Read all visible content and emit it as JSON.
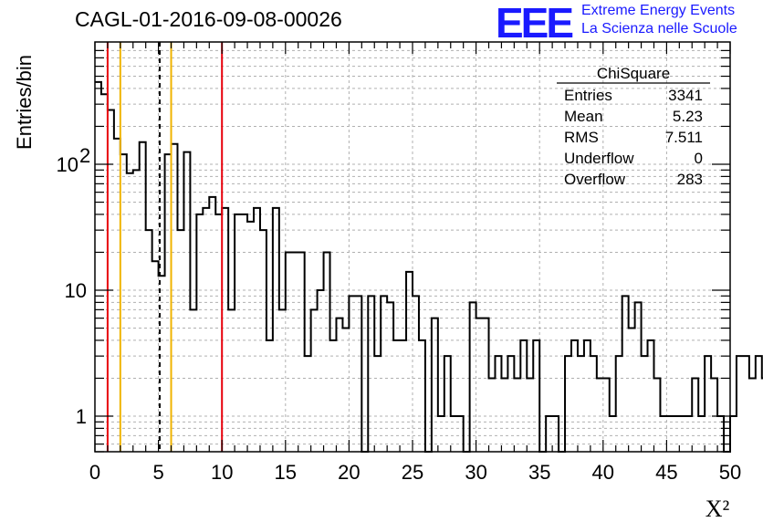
{
  "header": {
    "title": "CAGL-01-2016-09-08-00026",
    "logo_text": "EEE",
    "logo_line1": "Extreme Energy Events",
    "logo_line2": "La Scienza nelle Scuole"
  },
  "stats": {
    "title": "ChiSquare",
    "rows": [
      {
        "label": "Entries",
        "value": "3341"
      },
      {
        "label": "Mean",
        "value": "5.23"
      },
      {
        "label": "RMS",
        "value": "7.511"
      },
      {
        "label": "Underflow",
        "value": "0"
      },
      {
        "label": "Overflow",
        "value": "283"
      }
    ]
  },
  "chart_data": {
    "type": "histogram",
    "title": "CAGL-01-2016-09-08-00026",
    "xlabel": "X²",
    "ylabel": "Entries/bin",
    "xlim": [
      0,
      50
    ],
    "ylim": [
      0.5,
      900
    ],
    "yscale": "log",
    "grid": true,
    "bin_width": 0.5,
    "x_ticks": [
      "0",
      "5",
      "10",
      "15",
      "20",
      "25",
      "30",
      "35",
      "40",
      "45",
      "50"
    ],
    "y_ticks": [
      {
        "value": 1,
        "label": "1"
      },
      {
        "value": 10,
        "label": "10"
      },
      {
        "value": 100,
        "label": "10",
        "exponent": "2"
      }
    ],
    "values": [
      450,
      360,
      270,
      160,
      120,
      85,
      90,
      150,
      30,
      17,
      13,
      120,
      145,
      30,
      125,
      7,
      40,
      45,
      55,
      40,
      45,
      7,
      40,
      40,
      35,
      45,
      30,
      4,
      45,
      7,
      20,
      20,
      20,
      3,
      7,
      10,
      20,
      4,
      6,
      5,
      9,
      9,
      0,
      9,
      3,
      9,
      8,
      4,
      4,
      14,
      9,
      4,
      0,
      6,
      1,
      3,
      1,
      1,
      0,
      8,
      6,
      6,
      2,
      3,
      2,
      3,
      2,
      4,
      2,
      4,
      0,
      1,
      1,
      0,
      3,
      4,
      3,
      4,
      3,
      2,
      2,
      1,
      3,
      9,
      5,
      8,
      3,
      4,
      2,
      1,
      1,
      1,
      1,
      1,
      2,
      1,
      3,
      2,
      1,
      0,
      1,
      3,
      3,
      2,
      3,
      2,
      1,
      1,
      2,
      1,
      2,
      3,
      0,
      1,
      1,
      1,
      2,
      1,
      2,
      2,
      5,
      3,
      2,
      5,
      3,
      2,
      1,
      1,
      1,
      1,
      0,
      0,
      1,
      1,
      2,
      1,
      1,
      3,
      2,
      1,
      2,
      1,
      0,
      1,
      2,
      2,
      2,
      1,
      2,
      0
    ],
    "reference_lines": [
      {
        "x": 1,
        "color": "#e8000b",
        "style": "solid"
      },
      {
        "x": 2,
        "color": "#f0b400",
        "style": "solid"
      },
      {
        "x": 5.1,
        "color": "#000000",
        "style": "dashed"
      },
      {
        "x": 6,
        "color": "#f0b400",
        "style": "solid"
      },
      {
        "x": 10,
        "color": "#e8000b",
        "style": "solid"
      }
    ]
  }
}
